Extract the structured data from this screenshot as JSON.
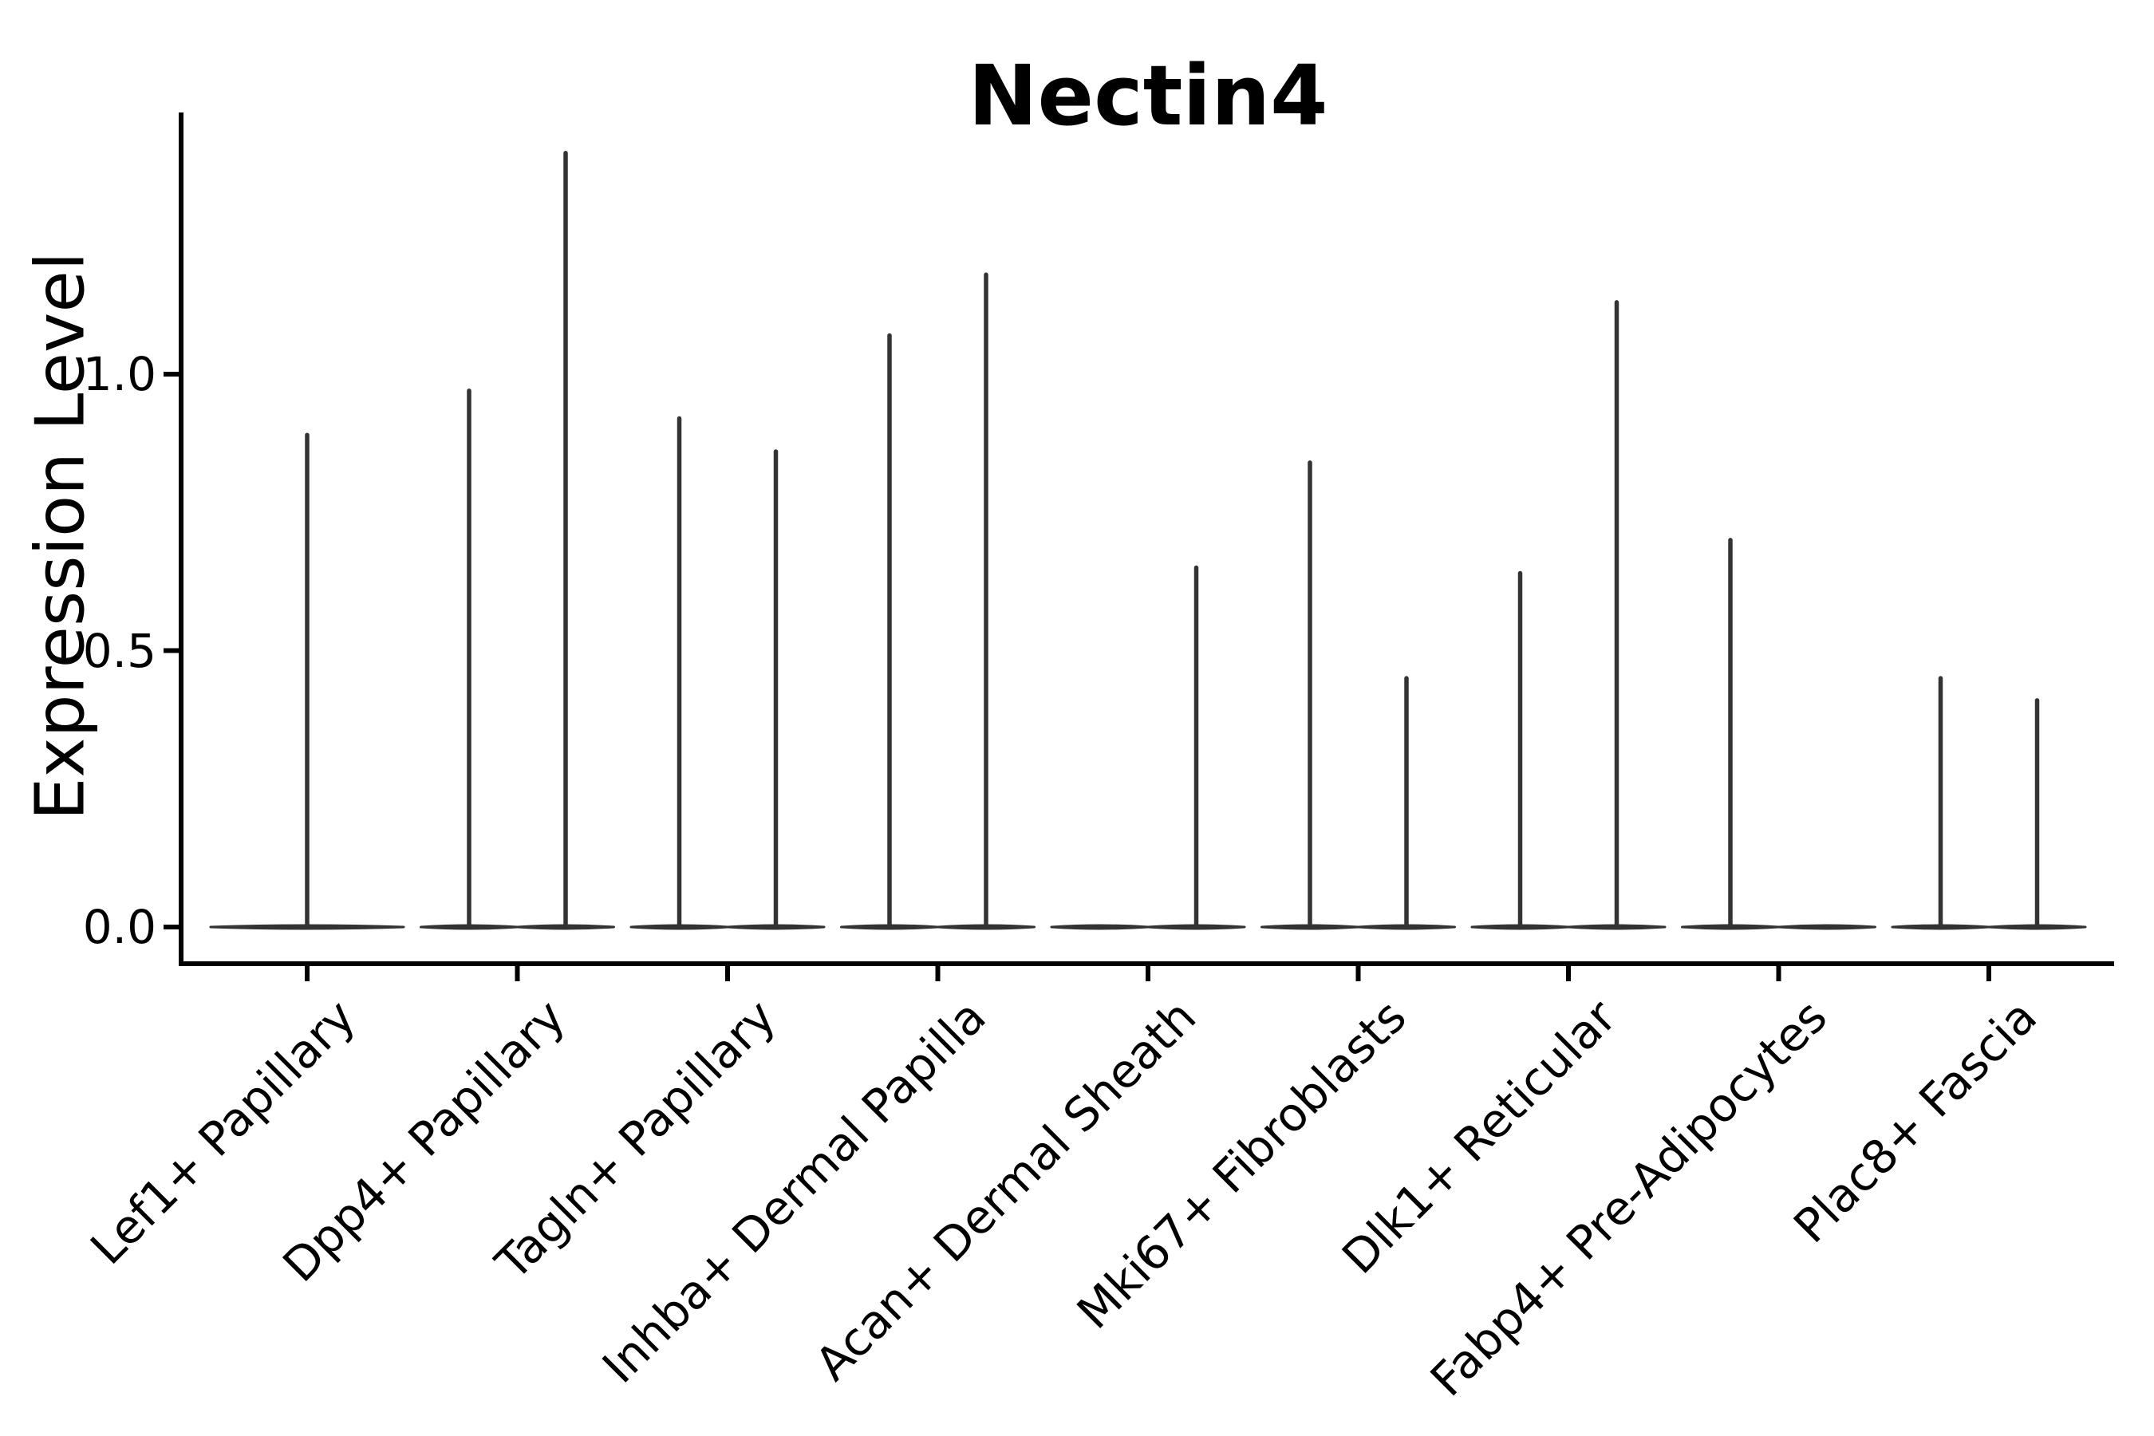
{
  "figure": {
    "background_color": "#ffffff",
    "title": "Nectin4"
  },
  "chart_data": {
    "type": "violin",
    "title": "Nectin4",
    "xlabel": "",
    "ylabel": "Expression Level",
    "yticks": [
      "0.0",
      "0.5",
      "1.0"
    ],
    "ytick_values": [
      0.0,
      0.5,
      1.0
    ],
    "ylim": [
      -0.066,
      1.473
    ],
    "grid": false,
    "legend": "none",
    "x_tick_rotation": 45,
    "violin_color": "#333333",
    "axis_color": "#000000",
    "categories": [
      "Lef1+ Papillary",
      "Dpp4+ Papillary",
      "Tagln+ Papillary",
      "Inhba+ Dermal Papilla",
      "Acan+ Dermal Sheath",
      "Mki67+ Fibroblasts",
      "Dlk1+ Reticular",
      "Fabp4+ Pre-Adipocytes",
      "Plac8+ Fascia"
    ],
    "description": "Violin plot of Nectin4 expression per fibroblast cluster; each violin collapses to a flat lens at 0 with a thin vertical spike reaching the maximum expression value. Most categories contain two side-by-side violins.",
    "series": [
      {
        "category": "Lef1+ Papillary",
        "violins": [
          {
            "position": "center",
            "max": 0.89
          }
        ]
      },
      {
        "category": "Dpp4+ Papillary",
        "violins": [
          {
            "position": "left",
            "max": 0.97
          },
          {
            "position": "right",
            "max": 1.4
          }
        ]
      },
      {
        "category": "Tagln+ Papillary",
        "violins": [
          {
            "position": "left",
            "max": 0.92
          },
          {
            "position": "right",
            "max": 0.86
          }
        ]
      },
      {
        "category": "Inhba+ Dermal Papilla",
        "violins": [
          {
            "position": "left",
            "max": 1.07
          },
          {
            "position": "right",
            "max": 1.18
          }
        ]
      },
      {
        "category": "Acan+ Dermal Sheath",
        "violins": [
          {
            "position": "left",
            "max": 0.0
          },
          {
            "position": "right",
            "max": 0.65
          }
        ]
      },
      {
        "category": "Mki67+ Fibroblasts",
        "violins": [
          {
            "position": "left",
            "max": 0.84
          },
          {
            "position": "right",
            "max": 0.45
          }
        ]
      },
      {
        "category": "Dlk1+ Reticular",
        "violins": [
          {
            "position": "left",
            "max": 0.64
          },
          {
            "position": "right",
            "max": 1.13
          }
        ]
      },
      {
        "category": "Fabp4+ Pre-Adipocytes",
        "violins": [
          {
            "position": "left",
            "max": 0.7
          },
          {
            "position": "right",
            "max": 0.0
          }
        ]
      },
      {
        "category": "Plac8+ Fascia",
        "violins": [
          {
            "position": "left",
            "max": 0.45
          },
          {
            "position": "right",
            "max": 0.41
          }
        ]
      }
    ]
  }
}
